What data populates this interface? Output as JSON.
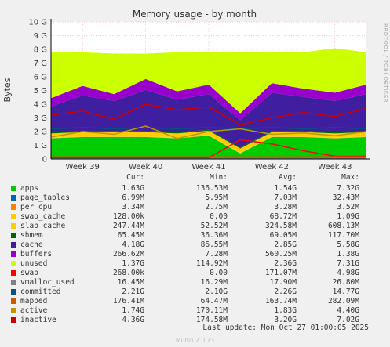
{
  "chart_data": {
    "type": "area",
    "title": "Memory usage - by month",
    "ylabel": "Bytes",
    "ylim": [
      0,
      10
    ],
    "y_unit": "G",
    "y_ticks": [
      "0",
      "1 G",
      "2 G",
      "3 G",
      "4 G",
      "5 G",
      "6 G",
      "7 G",
      "8 G",
      "9 G",
      "10 G"
    ],
    "x_ticks": [
      "Week 39",
      "Week 40",
      "Week 41",
      "Week 42",
      "Week 43"
    ],
    "x": [
      "Week 38.5",
      "Week 39",
      "Week 39.5",
      "Week 40",
      "Week 40.5",
      "Week 41",
      "Week 41.5",
      "Week 42",
      "Week 42.5",
      "Week 43",
      "Week 43.5"
    ],
    "grid": true,
    "side_text": "RRDTOOL / TOBI OETIKER",
    "stacked_series": [
      {
        "name": "apps",
        "color": "#00cc00",
        "values": [
          1.5,
          1.6,
          1.6,
          1.6,
          1.5,
          1.7,
          0.4,
          1.6,
          1.6,
          1.5,
          1.6
        ]
      },
      {
        "name": "page_tables",
        "color": "#0066b3",
        "values": [
          0.01,
          0.01,
          0.01,
          0.01,
          0.01,
          0.01,
          0.01,
          0.01,
          0.01,
          0.01,
          0.01
        ]
      },
      {
        "name": "per_cpu",
        "color": "#ff8000",
        "values": [
          0.003,
          0.003,
          0.003,
          0.003,
          0.003,
          0.003,
          0.003,
          0.003,
          0.003,
          0.003,
          0.003
        ]
      },
      {
        "name": "swap_cache",
        "color": "#ffcc00",
        "values": [
          0.05,
          0.05,
          0.05,
          0.05,
          0.05,
          0.05,
          0.05,
          0.05,
          0.05,
          0.05,
          0.05
        ]
      },
      {
        "name": "slab_cache",
        "color": "#ffcc00",
        "values": [
          0.3,
          0.3,
          0.3,
          0.3,
          0.3,
          0.3,
          0.3,
          0.3,
          0.3,
          0.3,
          0.3
        ]
      },
      {
        "name": "shmem",
        "color": "#006600",
        "values": [
          0.07,
          0.07,
          0.07,
          0.07,
          0.07,
          0.07,
          0.07,
          0.07,
          0.07,
          0.07,
          0.07
        ]
      },
      {
        "name": "cache",
        "color": "#3f1f9f",
        "values": [
          1.9,
          2.6,
          2.2,
          3.0,
          2.4,
          2.6,
          2.0,
          2.8,
          2.5,
          2.3,
          2.7
        ]
      },
      {
        "name": "buffers",
        "color": "#9900cc",
        "values": [
          0.6,
          0.7,
          0.5,
          0.8,
          0.6,
          0.7,
          0.5,
          0.7,
          0.6,
          0.6,
          0.7
        ]
      },
      {
        "name": "unused",
        "color": "#ccff00",
        "values": [
          3.35,
          2.45,
          2.95,
          1.85,
          2.85,
          2.35,
          4.45,
          2.25,
          2.65,
          3.25,
          2.35
        ]
      }
    ],
    "line_series": [
      {
        "name": "swap",
        "color": "#ff0000",
        "values": [
          0.1,
          0.1,
          0.1,
          0.1,
          0.1,
          0.1,
          1.4,
          1.1,
          0.6,
          0.2,
          0.2
        ]
      },
      {
        "name": "vmalloc_used",
        "color": "#808080",
        "values": [
          0.018,
          0.018,
          0.018,
          0.018,
          0.018,
          0.018,
          0.018,
          0.018,
          0.018,
          0.018,
          0.018
        ]
      },
      {
        "name": "committed",
        "color": "#005580",
        "values": [
          2.2,
          2.3,
          2.2,
          2.3,
          2.2,
          2.3,
          2.2,
          2.3,
          2.2,
          2.3,
          2.2
        ]
      },
      {
        "name": "mapped",
        "color": "#cc5c00",
        "values": [
          0.16,
          0.16,
          0.16,
          0.16,
          0.16,
          0.16,
          0.16,
          0.16,
          0.16,
          0.16,
          0.16
        ]
      },
      {
        "name": "active",
        "color": "#b89a00",
        "values": [
          1.6,
          2.0,
          1.8,
          2.4,
          1.5,
          2.0,
          2.2,
          1.8,
          1.9,
          1.7,
          2.0
        ]
      },
      {
        "name": "inactive",
        "color": "#cc0000",
        "values": [
          3.2,
          3.5,
          2.9,
          4.0,
          3.6,
          3.8,
          2.5,
          3.0,
          3.4,
          3.1,
          3.7
        ]
      }
    ],
    "legend_headers": [
      "Cur:",
      "Min:",
      "Avg:",
      "Max:"
    ],
    "legend": [
      {
        "name": "apps",
        "color": "#00cc00",
        "cur": "1.63G",
        "min": "136.53M",
        "avg": "1.54G",
        "max": "7.32G"
      },
      {
        "name": "page_tables",
        "color": "#0066b3",
        "cur": "6.99M",
        "min": "5.95M",
        "avg": "7.03M",
        "max": "32.43M"
      },
      {
        "name": "per_cpu",
        "color": "#ff8000",
        "cur": "3.34M",
        "min": "2.75M",
        "avg": "3.28M",
        "max": "3.52M"
      },
      {
        "name": "swap_cache",
        "color": "#ffcc00",
        "cur": "128.00k",
        "min": "0.00",
        "avg": "68.72M",
        "max": "1.09G"
      },
      {
        "name": "slab_cache",
        "color": "#ffcc00",
        "cur": "247.44M",
        "min": "52.52M",
        "avg": "324.58M",
        "max": "608.13M"
      },
      {
        "name": "shmem",
        "color": "#006600",
        "cur": "65.45M",
        "min": "36.36M",
        "avg": "69.05M",
        "max": "117.70M"
      },
      {
        "name": "cache",
        "color": "#3f1f9f",
        "cur": "4.18G",
        "min": "86.55M",
        "avg": "2.85G",
        "max": "5.58G"
      },
      {
        "name": "buffers",
        "color": "#9900cc",
        "cur": "266.62M",
        "min": "7.28M",
        "avg": "560.25M",
        "max": "1.38G"
      },
      {
        "name": "unused",
        "color": "#ccff00",
        "cur": "1.37G",
        "min": "114.92M",
        "avg": "2.36G",
        "max": "7.31G"
      },
      {
        "name": "swap",
        "color": "#ff0000",
        "cur": "268.00k",
        "min": "0.00",
        "avg": "171.07M",
        "max": "4.98G"
      },
      {
        "name": "vmalloc_used",
        "color": "#808080",
        "cur": "16.45M",
        "min": "16.29M",
        "avg": "17.90M",
        "max": "26.80M"
      },
      {
        "name": "committed",
        "color": "#005580",
        "cur": "2.21G",
        "min": "2.10G",
        "avg": "2.26G",
        "max": "14.77G"
      },
      {
        "name": "mapped",
        "color": "#cc5c00",
        "cur": "176.41M",
        "min": "64.47M",
        "avg": "163.74M",
        "max": "282.09M"
      },
      {
        "name": "active",
        "color": "#b89a00",
        "cur": "1.74G",
        "min": "170.11M",
        "avg": "1.83G",
        "max": "4.40G"
      },
      {
        "name": "inactive",
        "color": "#cc0000",
        "cur": "4.36G",
        "min": "174.58M",
        "avg": "3.20G",
        "max": "7.02G"
      }
    ]
  },
  "footer": {
    "last_update": "Last update: Mon Oct 27 01:00:05 2025",
    "munin_version": "Munin 2.0.73"
  }
}
